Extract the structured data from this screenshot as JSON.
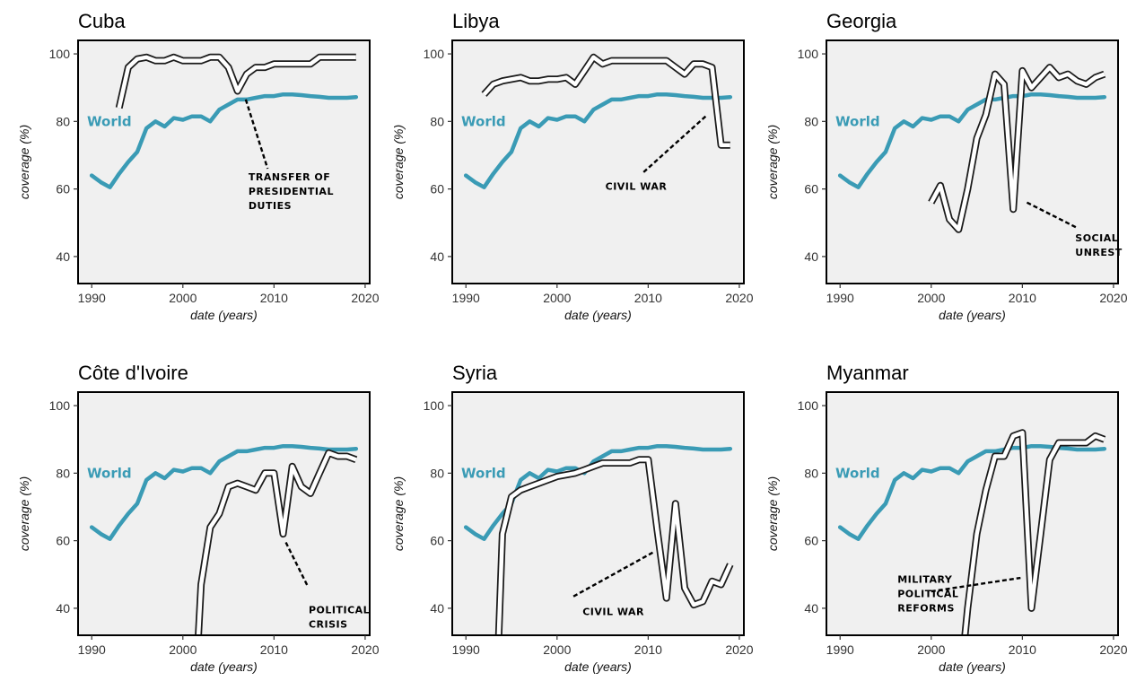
{
  "chart_data": [
    {
      "type": "line",
      "title": "Cuba",
      "xlabel": "date (years)",
      "ylabel": "coverage (%)",
      "xlim": [
        1988.5,
        2020.5
      ],
      "ylim": [
        32,
        104
      ],
      "xticks": [
        1990,
        2000,
        2010,
        2020
      ],
      "yticks": [
        40,
        60,
        80,
        100
      ],
      "grid": false,
      "series": [
        {
          "name": "World",
          "color": "#3a9bb5",
          "x": [
            1990,
            1991,
            1992,
            1993,
            1994,
            1995,
            1996,
            1997,
            1998,
            1999,
            2000,
            2001,
            2002,
            2003,
            2004,
            2005,
            2006,
            2007,
            2008,
            2009,
            2010,
            2011,
            2012,
            2013,
            2014,
            2015,
            2016,
            2017,
            2018,
            2019
          ],
          "y": [
            64,
            62,
            60.5,
            64.5,
            68,
            71,
            78,
            80,
            78.5,
            81,
            80.5,
            81.5,
            81.5,
            80,
            83.5,
            85,
            86.5,
            86.5,
            87,
            87.5,
            87.5,
            88,
            88,
            87.8,
            87.5,
            87.3,
            87,
            87,
            87,
            87.2
          ]
        },
        {
          "style": "outline",
          "x": [
            1993,
            1994,
            1995,
            1996,
            1997,
            1998,
            1999,
            2000,
            2001,
            2002,
            2003,
            2004,
            2005,
            2006,
            2007,
            2008,
            2009,
            2010,
            2011,
            2012,
            2013,
            2014,
            2015,
            2016,
            2017,
            2018,
            2019
          ],
          "y": [
            84,
            96,
            98.5,
            99,
            98,
            98,
            99,
            98,
            98,
            98,
            99,
            99,
            96,
            89,
            94,
            96,
            96,
            97,
            97,
            97,
            97,
            97,
            99,
            99,
            99,
            99,
            99
          ]
        }
      ],
      "annotations": [
        {
          "text": [
            "TRANSFER OF",
            "PRESIDENTIAL",
            "DUTIES"
          ],
          "x": 2007.2,
          "y": 62.5,
          "from": [
            2006.9,
            86.5
          ],
          "to": [
            2009.3,
            66
          ]
        }
      ]
    },
    {
      "type": "line",
      "title": "Libya",
      "xlabel": "date (years)",
      "ylabel": "coverage (%)",
      "xlim": [
        1988.5,
        2020.5
      ],
      "ylim": [
        32,
        104
      ],
      "xticks": [
        1990,
        2000,
        2010,
        2020
      ],
      "yticks": [
        40,
        60,
        80,
        100
      ],
      "grid": false,
      "series": [
        {
          "name": "World",
          "color": "#3a9bb5",
          "x": [
            1990,
            1991,
            1992,
            1993,
            1994,
            1995,
            1996,
            1997,
            1998,
            1999,
            2000,
            2001,
            2002,
            2003,
            2004,
            2005,
            2006,
            2007,
            2008,
            2009,
            2010,
            2011,
            2012,
            2013,
            2014,
            2015,
            2016,
            2017,
            2018,
            2019
          ],
          "y": [
            64,
            62,
            60.5,
            64.5,
            68,
            71,
            78,
            80,
            78.5,
            81,
            80.5,
            81.5,
            81.5,
            80,
            83.5,
            85,
            86.5,
            86.5,
            87,
            87.5,
            87.5,
            88,
            88,
            87.8,
            87.5,
            87.3,
            87,
            87,
            87,
            87.2
          ]
        },
        {
          "style": "outline",
          "x": [
            1992,
            1993,
            1994,
            1995,
            1996,
            1997,
            1998,
            1999,
            2000,
            2001,
            2002,
            2003,
            2004,
            2005,
            2006,
            2007,
            2008,
            2009,
            2010,
            2011,
            2012,
            2013,
            2014,
            2015,
            2016,
            2017,
            2018,
            2019
          ],
          "y": [
            88,
            91,
            92,
            92.5,
            93,
            92,
            92,
            92.5,
            92.5,
            93,
            91,
            95,
            99,
            97,
            98,
            98,
            98,
            98,
            98,
            98,
            98,
            96,
            94,
            97,
            97,
            96,
            73,
            73
          ]
        }
      ],
      "annotations": [
        {
          "text": [
            "CIVIL WAR"
          ],
          "x": 2005.3,
          "y": 59.7,
          "from": [
            2016.3,
            81.5
          ],
          "to": [
            2009.3,
            64.5
          ]
        }
      ]
    },
    {
      "type": "line",
      "title": "Georgia",
      "xlabel": "date (years)",
      "ylabel": "coverage (%)",
      "xlim": [
        1988.5,
        2020.5
      ],
      "ylim": [
        32,
        104
      ],
      "xticks": [
        1990,
        2000,
        2010,
        2020
      ],
      "yticks": [
        40,
        60,
        80,
        100
      ],
      "grid": false,
      "series": [
        {
          "name": "World",
          "color": "#3a9bb5",
          "x": [
            1990,
            1991,
            1992,
            1993,
            1994,
            1995,
            1996,
            1997,
            1998,
            1999,
            2000,
            2001,
            2002,
            2003,
            2004,
            2005,
            2006,
            2007,
            2008,
            2009,
            2010,
            2011,
            2012,
            2013,
            2014,
            2015,
            2016,
            2017,
            2018,
            2019
          ],
          "y": [
            64,
            62,
            60.5,
            64.5,
            68,
            71,
            78,
            80,
            78.5,
            81,
            80.5,
            81.5,
            81.5,
            80,
            83.5,
            85,
            86.5,
            86.5,
            87,
            87.5,
            87.5,
            88,
            88,
            87.8,
            87.5,
            87.3,
            87,
            87,
            87,
            87.2
          ]
        },
        {
          "style": "outline",
          "x": [
            2000,
            2001,
            2002,
            2003,
            2004,
            2005,
            2006,
            2007,
            2008,
            2009,
            2010,
            2011,
            2012,
            2013,
            2014,
            2015,
            2016,
            2017,
            2018,
            2019
          ],
          "y": [
            56,
            61,
            51,
            48,
            60,
            75,
            82,
            94,
            91,
            54,
            95,
            90,
            93,
            96,
            93,
            94,
            92,
            91,
            93,
            94
          ]
        }
      ],
      "annotations": [
        {
          "text": [
            "SOCIAL",
            "UNREST"
          ],
          "x": 2015.8,
          "y": 44.5,
          "from": [
            2010.5,
            56
          ],
          "to": [
            2016,
            48.5
          ]
        }
      ]
    },
    {
      "type": "line",
      "title": "Côte d'Ivoire",
      "xlabel": "date (years)",
      "ylabel": "coverage (%)",
      "xlim": [
        1988.5,
        2020.5
      ],
      "ylim": [
        32,
        104
      ],
      "xticks": [
        1990,
        2000,
        2010,
        2020
      ],
      "yticks": [
        40,
        60,
        80,
        100
      ],
      "grid": false,
      "series": [
        {
          "name": "World",
          "color": "#3a9bb5",
          "x": [
            1990,
            1991,
            1992,
            1993,
            1994,
            1995,
            1996,
            1997,
            1998,
            1999,
            2000,
            2001,
            2002,
            2003,
            2004,
            2005,
            2006,
            2007,
            2008,
            2009,
            2010,
            2011,
            2012,
            2013,
            2014,
            2015,
            2016,
            2017,
            2018,
            2019
          ],
          "y": [
            64,
            62,
            60.5,
            64.5,
            68,
            71,
            78,
            80,
            78.5,
            81,
            80.5,
            81.5,
            81.5,
            80,
            83.5,
            85,
            86.5,
            86.5,
            87,
            87.5,
            87.5,
            88,
            88,
            87.8,
            87.5,
            87.3,
            87,
            87,
            87,
            87.2
          ]
        },
        {
          "style": "outline",
          "x": [
            2001.7,
            2002,
            2003,
            2004,
            2005,
            2006,
            2007,
            2008,
            2009,
            2010,
            2011,
            2012,
            2013,
            2014,
            2015,
            2016,
            2017,
            2018,
            2019
          ],
          "y": [
            32,
            47,
            64,
            68,
            76,
            77,
            76,
            75,
            80,
            80,
            62,
            82,
            76,
            74,
            80,
            86,
            85,
            85,
            84
          ]
        }
      ],
      "annotations": [
        {
          "text": [
            "POLITICAL",
            "CRISIS"
          ],
          "x": 2013.8,
          "y": 38.5,
          "from": [
            2011.3,
            59.5
          ],
          "to": [
            2013.7,
            46.5
          ]
        }
      ]
    },
    {
      "type": "line",
      "title": "Syria",
      "xlabel": "date (years)",
      "ylabel": "coverage (%)",
      "xlim": [
        1988.5,
        2020.5
      ],
      "ylim": [
        32,
        104
      ],
      "xticks": [
        1990,
        2000,
        2010,
        2020
      ],
      "yticks": [
        40,
        60,
        80,
        100
      ],
      "grid": false,
      "series": [
        {
          "name": "World",
          "color": "#3a9bb5",
          "x": [
            1990,
            1991,
            1992,
            1993,
            1994,
            1995,
            1996,
            1997,
            1998,
            1999,
            2000,
            2001,
            2002,
            2003,
            2004,
            2005,
            2006,
            2007,
            2008,
            2009,
            2010,
            2011,
            2012,
            2013,
            2014,
            2015,
            2016,
            2017,
            2018,
            2019
          ],
          "y": [
            64,
            62,
            60.5,
            64.5,
            68,
            71,
            78,
            80,
            78.5,
            81,
            80.5,
            81.5,
            81.5,
            80,
            83.5,
            85,
            86.5,
            86.5,
            87,
            87.5,
            87.5,
            88,
            88,
            87.8,
            87.5,
            87.3,
            87,
            87,
            87,
            87.2
          ]
        },
        {
          "style": "outline",
          "x": [
            1993.6,
            1994,
            1995,
            1996,
            1997,
            1998,
            1999,
            2000,
            2001,
            2002,
            2003,
            2004,
            2005,
            2006,
            2007,
            2008,
            2009,
            2010,
            2011,
            2012,
            2013,
            2014,
            2015,
            2016,
            2017,
            2018,
            2019
          ],
          "y": [
            32,
            62,
            73,
            75,
            76,
            77,
            78,
            79,
            79.5,
            80,
            81,
            82,
            83,
            83,
            83,
            83,
            84,
            84,
            63,
            43,
            71,
            46,
            41,
            42,
            48,
            47,
            53
          ]
        }
      ],
      "annotations": [
        {
          "text": [
            "CIVIL WAR"
          ],
          "x": 2002.8,
          "y": 38,
          "from": [
            2010.5,
            56.5
          ],
          "to": [
            2001.8,
            43.5
          ]
        }
      ]
    },
    {
      "type": "line",
      "title": "Myanmar",
      "xlabel": "date (years)",
      "ylabel": "coverage (%)",
      "xlim": [
        1988.5,
        2020.5
      ],
      "ylim": [
        32,
        104
      ],
      "xticks": [
        1990,
        2000,
        2010,
        2020
      ],
      "yticks": [
        40,
        60,
        80,
        100
      ],
      "grid": false,
      "series": [
        {
          "name": "World",
          "color": "#3a9bb5",
          "x": [
            1990,
            1991,
            1992,
            1993,
            1994,
            1995,
            1996,
            1997,
            1998,
            1999,
            2000,
            2001,
            2002,
            2003,
            2004,
            2005,
            2006,
            2007,
            2008,
            2009,
            2010,
            2011,
            2012,
            2013,
            2014,
            2015,
            2016,
            2017,
            2018,
            2019
          ],
          "y": [
            64,
            62,
            60.5,
            64.5,
            68,
            71,
            78,
            80,
            78.5,
            81,
            80.5,
            81.5,
            81.5,
            80,
            83.5,
            85,
            86.5,
            86.5,
            87,
            87.5,
            87.5,
            88,
            88,
            87.8,
            87.5,
            87.3,
            87,
            87,
            87,
            87.2
          ]
        },
        {
          "style": "outline",
          "x": [
            2003.7,
            2004,
            2005,
            2006,
            2007,
            2008,
            2009,
            2010,
            2011,
            2012,
            2013,
            2014,
            2015,
            2016,
            2017,
            2018,
            2019
          ],
          "y": [
            32,
            40,
            62,
            75,
            85,
            85,
            91,
            92,
            40,
            62,
            84,
            89,
            89,
            89,
            89,
            91,
            90
          ]
        }
      ],
      "annotations": [
        {
          "text": [
            "MILITARY",
            "POLITICAL",
            "REFORMS"
          ],
          "x": 1996.3,
          "y": 47.5,
          "from": [
            2000,
            45
          ],
          "to": [
            2009.8,
            49
          ]
        }
      ]
    }
  ]
}
